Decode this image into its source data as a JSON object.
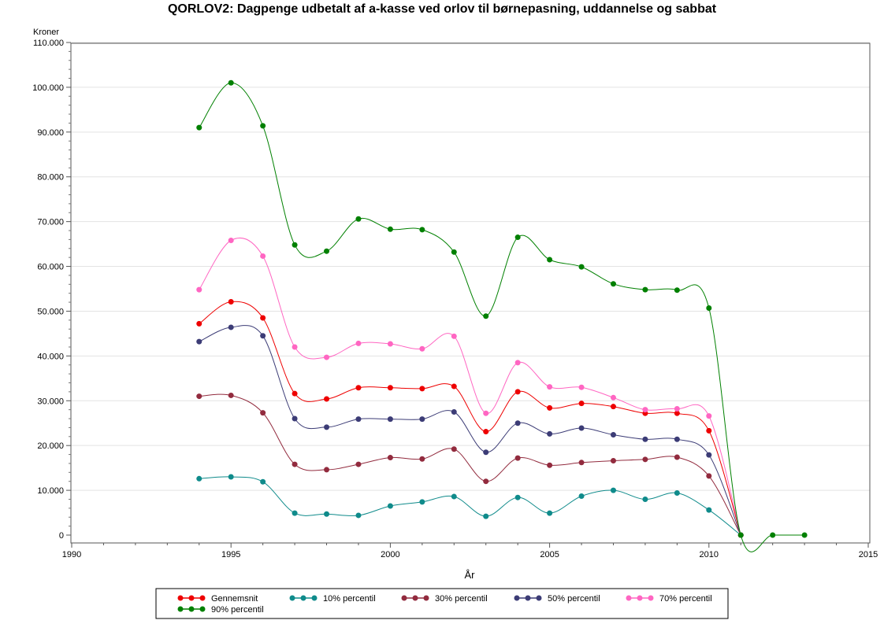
{
  "chart_data": {
    "type": "line",
    "title": "QORLOV2: Dagpenge udbetalt af a-kasse ved orlov til børnepasning, uddannelse og sabbat",
    "xlabel": "År",
    "ylabel": "Kroner",
    "xlim": [
      1990,
      2015
    ],
    "ylim": [
      0,
      110000
    ],
    "x_ticks": [
      1990,
      1995,
      2000,
      2005,
      2010,
      2015
    ],
    "y_ticks": [
      0,
      10000,
      20000,
      30000,
      40000,
      50000,
      60000,
      70000,
      80000,
      90000,
      100000,
      110000
    ],
    "y_tick_labels": [
      "0",
      "10.000",
      "20.000",
      "30.000",
      "40.000",
      "50.000",
      "60.000",
      "70.000",
      "80.000",
      "90.000",
      "100.000",
      "110.000"
    ],
    "grid": "horizontal",
    "legend_position": "bottom",
    "x": [
      1994,
      1995,
      1996,
      1997,
      1998,
      1999,
      2000,
      2001,
      2002,
      2003,
      2004,
      2005,
      2006,
      2007,
      2008,
      2009,
      2010,
      2011,
      2012,
      2013
    ],
    "series": [
      {
        "name": "Gennemsnit",
        "color": "#ee0000",
        "values": [
          47200,
          52100,
          48500,
          31600,
          30400,
          32900,
          32900,
          32700,
          33200,
          23100,
          32000,
          28400,
          29400,
          28700,
          27200,
          27200,
          23300,
          0,
          null,
          null
        ]
      },
      {
        "name": "10% percentil",
        "color": "#0f8b8b",
        "values": [
          12600,
          13000,
          11900,
          4900,
          4700,
          4400,
          6500,
          7400,
          8600,
          4200,
          8400,
          4900,
          8700,
          10000,
          8000,
          9400,
          5600,
          0,
          null,
          null
        ]
      },
      {
        "name": "30% percentil",
        "color": "#922b3e",
        "values": [
          31000,
          31200,
          27300,
          15800,
          14600,
          15800,
          17300,
          17000,
          19200,
          12000,
          17200,
          15600,
          16200,
          16600,
          16900,
          17400,
          13200,
          0,
          null,
          null
        ]
      },
      {
        "name": "50% percentil",
        "color": "#3c3c76",
        "values": [
          43200,
          46400,
          44500,
          26000,
          24100,
          25900,
          25900,
          25900,
          27500,
          18500,
          25000,
          22600,
          23900,
          22400,
          21400,
          21400,
          17900,
          0,
          null,
          null
        ]
      },
      {
        "name": "70% percentil",
        "color": "#ff66c2",
        "values": [
          54800,
          65800,
          62300,
          42000,
          39700,
          42800,
          42700,
          41600,
          44400,
          27200,
          38500,
          33100,
          33000,
          30700,
          28000,
          28200,
          26600,
          0,
          null,
          null
        ]
      },
      {
        "name": "90% percentil",
        "color": "#008000",
        "values": [
          91000,
          101000,
          91400,
          64800,
          63400,
          70600,
          68300,
          68200,
          63200,
          48900,
          66500,
          61500,
          59900,
          56100,
          54800,
          54700,
          50700,
          0,
          0,
          0
        ]
      }
    ]
  }
}
